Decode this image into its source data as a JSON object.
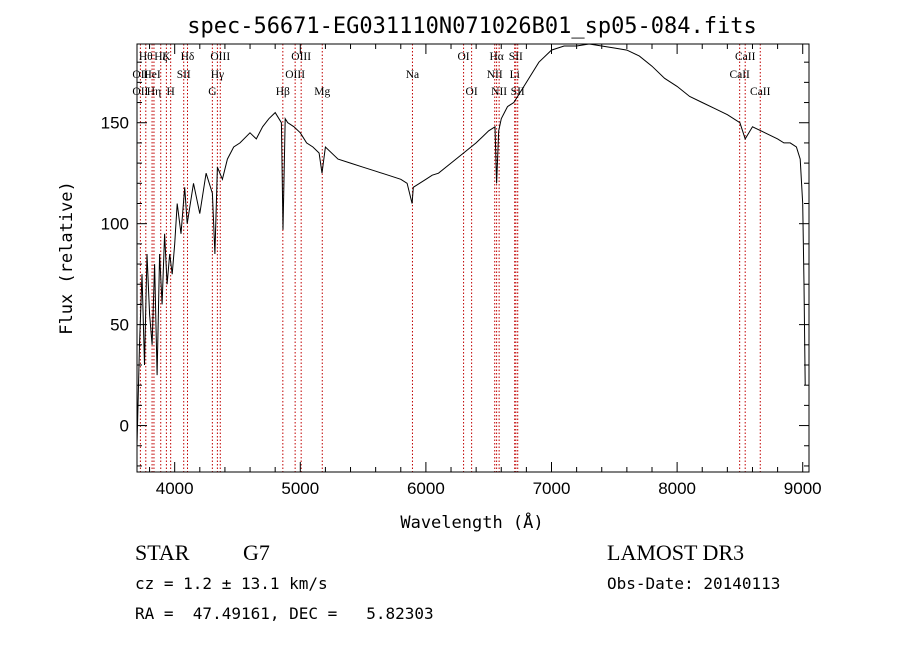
{
  "chart_data": {
    "type": "line",
    "title": "spec-56671-EG031110N071026B01_sp05-084.fits",
    "xlabel": "Wavelength (Å)",
    "ylabel": "Flux (relative)",
    "xlim": [
      3700,
      9050
    ],
    "ylim": [
      -23,
      189
    ],
    "xticks": [
      4000,
      5000,
      6000,
      7000,
      8000,
      9000
    ],
    "yticks": [
      0,
      50,
      100,
      150
    ],
    "series": [
      {
        "name": "spectrum",
        "x": [
          3700,
          3720,
          3740,
          3760,
          3780,
          3800,
          3820,
          3840,
          3860,
          3880,
          3900,
          3920,
          3940,
          3960,
          3980,
          4000,
          4020,
          4050,
          4080,
          4100,
          4150,
          4200,
          4250,
          4300,
          4320,
          4340,
          4380,
          4420,
          4470,
          4520,
          4600,
          4650,
          4700,
          4750,
          4800,
          4850,
          4862,
          4880,
          4900,
          4950,
          5000,
          5050,
          5100,
          5150,
          5173,
          5200,
          5300,
          5400,
          5500,
          5600,
          5700,
          5800,
          5850,
          5890,
          5900,
          5950,
          6000,
          6050,
          6100,
          6200,
          6300,
          6400,
          6450,
          6500,
          6550,
          6563,
          6580,
          6600,
          6650,
          6700,
          6800,
          6900,
          7000,
          7100,
          7200,
          7300,
          7400,
          7500,
          7600,
          7700,
          7800,
          7900,
          8000,
          8100,
          8200,
          8300,
          8400,
          8500,
          8542,
          8600,
          8700,
          8800,
          8850,
          8900,
          8950,
          8980,
          9000,
          9010,
          9020
        ],
        "y": [
          -10,
          40,
          75,
          30,
          85,
          55,
          40,
          80,
          25,
          85,
          60,
          95,
          70,
          85,
          75,
          90,
          110,
          95,
          118,
          100,
          120,
          105,
          125,
          115,
          85,
          128,
          122,
          132,
          138,
          140,
          145,
          142,
          148,
          152,
          155,
          150,
          97,
          152,
          150,
          148,
          145,
          140,
          138,
          135,
          125,
          138,
          132,
          130,
          128,
          126,
          124,
          122,
          120,
          110,
          118,
          120,
          122,
          124,
          125,
          130,
          135,
          140,
          143,
          146,
          148,
          120,
          146,
          152,
          158,
          160,
          170,
          180,
          186,
          188,
          188,
          189,
          188,
          187,
          186,
          183,
          178,
          172,
          168,
          163,
          160,
          157,
          154,
          150,
          142,
          148,
          145,
          142,
          140,
          140,
          138,
          132,
          110,
          70,
          20
        ]
      }
    ],
    "line_markers": [
      {
        "wavelength": 3727,
        "label": "OII",
        "row": 2
      },
      {
        "wavelength": 3727,
        "label": "OII",
        "row": 3
      },
      {
        "wavelength": 3770,
        "label": "Hθ",
        "row": 1
      },
      {
        "wavelength": 3820,
        "label": "HeI",
        "row": 2
      },
      {
        "wavelength": 3835,
        "label": "Hη",
        "row": 3
      },
      {
        "wavelength": 3889,
        "label": "Hζ",
        "row": 1
      },
      {
        "wavelength": 3934,
        "label": "K",
        "row": 1
      },
      {
        "wavelength": 3968,
        "label": "H",
        "row": 3
      },
      {
        "wavelength": 4072,
        "label": "SII",
        "row": 2
      },
      {
        "wavelength": 4102,
        "label": "Hδ",
        "row": 1
      },
      {
        "wavelength": 4300,
        "label": "G",
        "row": 3
      },
      {
        "wavelength": 4340,
        "label": "Hγ",
        "row": 2
      },
      {
        "wavelength": 4363,
        "label": "OIII",
        "row": 1
      },
      {
        "wavelength": 4861,
        "label": "Hβ",
        "row": 3
      },
      {
        "wavelength": 4959,
        "label": "OIII",
        "row": 2
      },
      {
        "wavelength": 5007,
        "label": "OIII",
        "row": 1
      },
      {
        "wavelength": 5175,
        "label": "Mg",
        "row": 3
      },
      {
        "wavelength": 5893,
        "label": "Na",
        "row": 2
      },
      {
        "wavelength": 6300,
        "label": "OI",
        "row": 1
      },
      {
        "wavelength": 6364,
        "label": "OI",
        "row": 3
      },
      {
        "wavelength": 6548,
        "label": "NII",
        "row": 2
      },
      {
        "wavelength": 6563,
        "label": "Hα",
        "row": 1
      },
      {
        "wavelength": 6583,
        "label": "NII",
        "row": 3
      },
      {
        "wavelength": 6707,
        "label": "Li",
        "row": 2
      },
      {
        "wavelength": 6716,
        "label": "SII",
        "row": 1
      },
      {
        "wavelength": 6731,
        "label": "SII",
        "row": 3
      },
      {
        "wavelength": 8498,
        "label": "CaII",
        "row": 2
      },
      {
        "wavelength": 8542,
        "label": "CaII",
        "row": 1
      },
      {
        "wavelength": 8662,
        "label": "CaII",
        "row": 3
      }
    ]
  },
  "info": {
    "object_type": "STAR",
    "subclass": "G7",
    "survey": "LAMOST DR3",
    "cz": "cz = 1.2 ± 13.1 km/s",
    "obs_date": "Obs-Date: 20140113",
    "coords": "RA =  47.49161, DEC =   5.82303"
  },
  "colors": {
    "line_marker": "#c00000",
    "spectrum": "#000000",
    "background": "#ffffff"
  }
}
